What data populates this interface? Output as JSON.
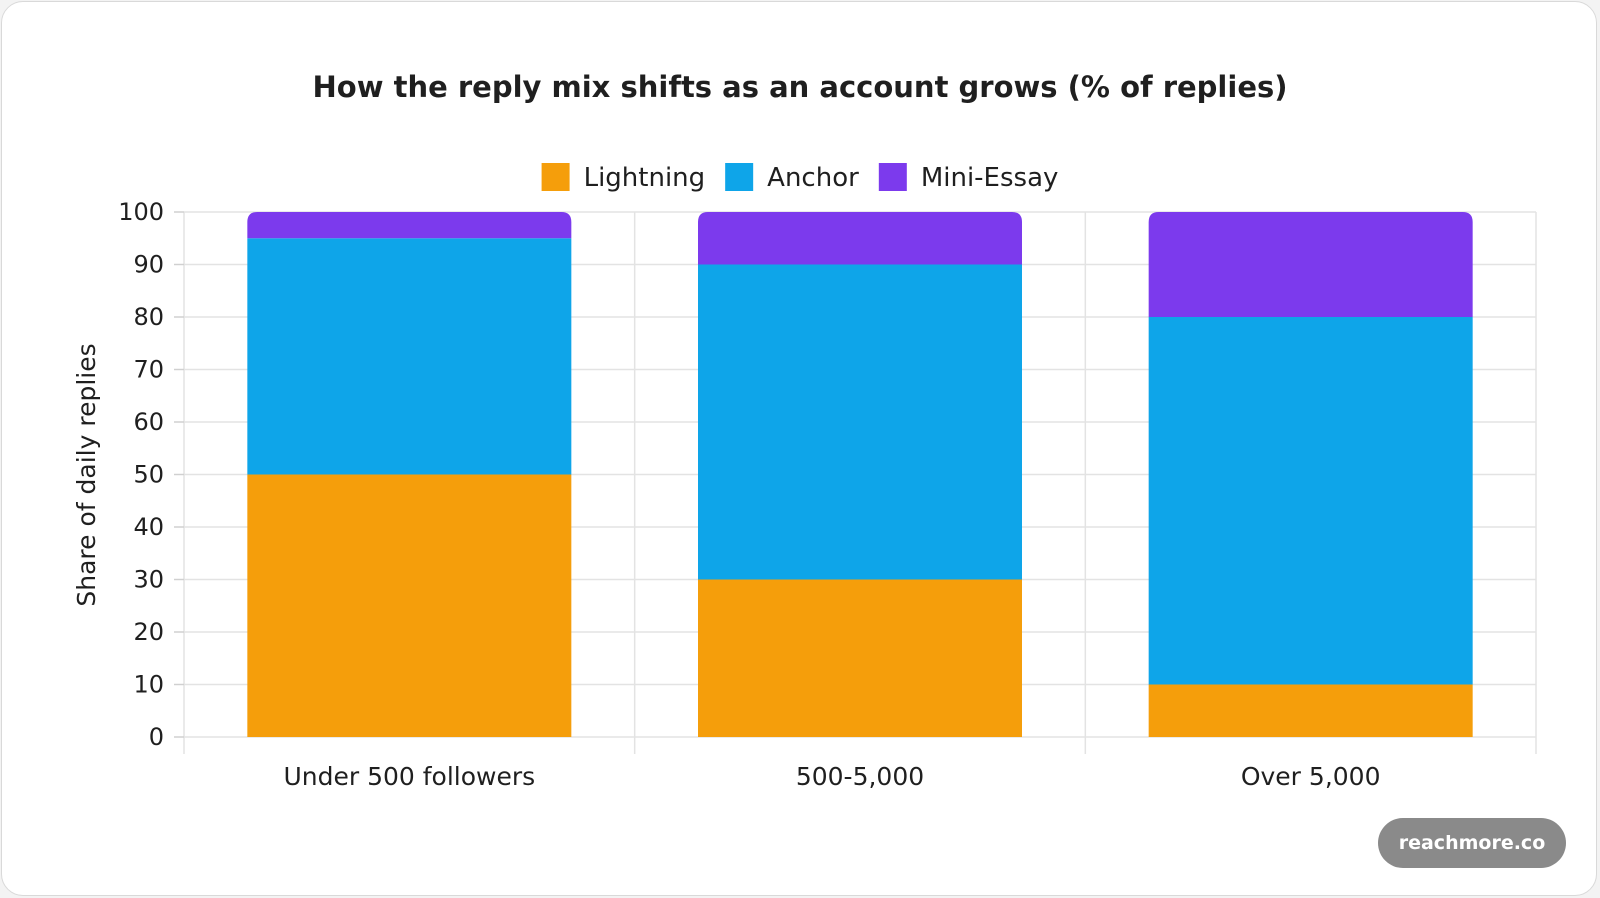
{
  "chart_data": {
    "type": "bar",
    "stacked": true,
    "title": "How the reply mix shifts as an account grows (% of replies)",
    "xlabel": "",
    "ylabel": "Share of daily replies",
    "ylim": [
      0,
      100
    ],
    "yticks": [
      0,
      10,
      20,
      30,
      40,
      50,
      60,
      70,
      80,
      90,
      100
    ],
    "categories": [
      "Under 500 followers",
      "500-5,000",
      "Over 5,000"
    ],
    "series": [
      {
        "name": "Lightning",
        "color": "#f59e0b",
        "values": [
          50,
          30,
          10
        ]
      },
      {
        "name": "Anchor",
        "color": "#0ea5e9",
        "values": [
          45,
          60,
          70
        ]
      },
      {
        "name": "Mini-Essay",
        "color": "#7c3aed",
        "values": [
          5,
          10,
          20
        ]
      }
    ],
    "grid": true,
    "legend_position": "top-center"
  },
  "watermark": "reachmore.co"
}
